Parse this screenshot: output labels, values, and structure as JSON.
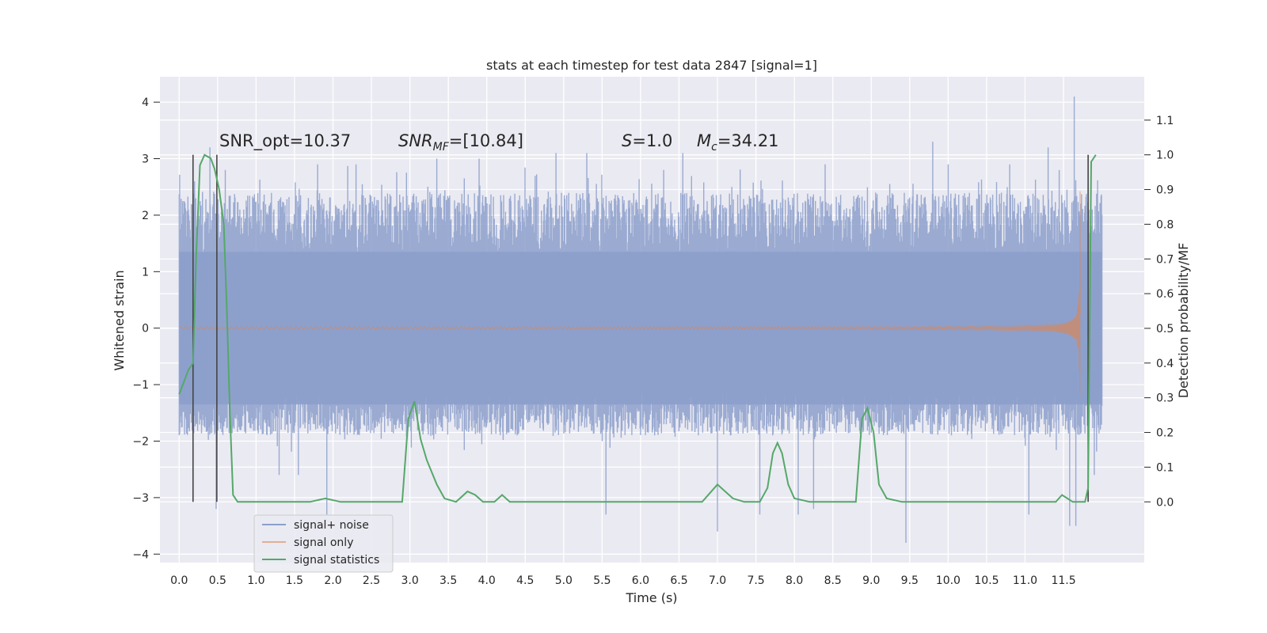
{
  "chart_data": {
    "type": "line",
    "title": "stats at each timestep for test data 2847 [signal=1]",
    "xlabel": "Time (s)",
    "ylabel": "Whitened strain",
    "ylabel_right": "Detection probability/MF",
    "xlim": [
      -0.25,
      12.55
    ],
    "ylim": [
      -4.15,
      4.45
    ],
    "ylim_right": [
      -0.175,
      1.225
    ],
    "xticks": [
      "0.0",
      "0.5",
      "1.0",
      "1.5",
      "2.0",
      "2.5",
      "3.0",
      "3.5",
      "4.0",
      "4.5",
      "5.0",
      "5.5",
      "6.0",
      "6.5",
      "7.0",
      "7.5",
      "8.0",
      "8.5",
      "9.0",
      "9.5",
      "10.0",
      "10.5",
      "11.0",
      "11.5"
    ],
    "yticks": [
      "4",
      "3",
      "2",
      "1",
      "0",
      "−1",
      "−2",
      "−3",
      "−4"
    ],
    "yticks_right": [
      "1.1",
      "1.0",
      "0.9",
      "0.8",
      "0.7",
      "0.6",
      "0.5",
      "0.4",
      "0.3",
      "0.2",
      "0.1",
      "0.0"
    ],
    "grid": true,
    "legend_position": "lower-left",
    "annotations": {
      "snr_opt": "SNR_opt=10.37",
      "snr_mf_main": "SNR",
      "snr_mf_sub": "MF",
      "snr_mf_value": "=[10.84]",
      "s_symbol": "S",
      "s_value": "=1.0",
      "mc_symbol": "M",
      "mc_sub": "c",
      "mc_value": "=34.21"
    },
    "vertical_lines": [
      0.18,
      0.49,
      11.82
    ],
    "series": [
      {
        "name": "signal+ noise",
        "color": "#8c9fcb",
        "time_range": [
          0.0,
          12.0
        ],
        "envelope_typical": [
          -1.9,
          2.4
        ],
        "spikes": [
          {
            "t": 0.2,
            "y": 2.6
          },
          {
            "t": 0.4,
            "y": 3.2
          },
          {
            "t": 0.48,
            "y": -3.2
          },
          {
            "t": 0.6,
            "y": 2.8
          },
          {
            "t": 1.3,
            "y": -2.6
          },
          {
            "t": 1.55,
            "y": -2.6
          },
          {
            "t": 1.8,
            "y": 2.9
          },
          {
            "t": 1.92,
            "y": -3.3
          },
          {
            "t": 2.3,
            "y": 2.9
          },
          {
            "t": 3.35,
            "y": 3.0
          },
          {
            "t": 3.9,
            "y": 3.0
          },
          {
            "t": 4.9,
            "y": 3.1
          },
          {
            "t": 5.3,
            "y": 3.1
          },
          {
            "t": 5.55,
            "y": -3.3
          },
          {
            "t": 6.3,
            "y": 2.8
          },
          {
            "t": 6.55,
            "y": 3.1
          },
          {
            "t": 7.0,
            "y": -3.6
          },
          {
            "t": 7.55,
            "y": -3.3
          },
          {
            "t": 8.05,
            "y": -3.3
          },
          {
            "t": 8.25,
            "y": -3.2
          },
          {
            "t": 8.4,
            "y": 2.9
          },
          {
            "t": 9.45,
            "y": -3.8
          },
          {
            "t": 9.8,
            "y": 3.3
          },
          {
            "t": 10.0,
            "y": 2.9
          },
          {
            "t": 10.8,
            "y": 2.9
          },
          {
            "t": 11.05,
            "y": -3.3
          },
          {
            "t": 11.3,
            "y": 3.2
          },
          {
            "t": 11.58,
            "y": -3.5
          },
          {
            "t": 11.64,
            "y": 4.1
          },
          {
            "t": 11.66,
            "y": -3.5
          },
          {
            "t": 11.9,
            "y": -2.6
          }
        ]
      },
      {
        "name": "signal only",
        "color": "#dd8452",
        "time_range": [
          0.0,
          11.72
        ],
        "chirp_end_amplitude": 2.5,
        "merger_time": 11.72
      },
      {
        "name": "signal statistics",
        "color": "#55a868",
        "axis": "right",
        "points": [
          [
            0.0,
            0.31
          ],
          [
            0.12,
            0.38
          ],
          [
            0.18,
            0.4
          ],
          [
            0.22,
            0.7
          ],
          [
            0.27,
            0.97
          ],
          [
            0.33,
            1.0
          ],
          [
            0.41,
            0.99
          ],
          [
            0.46,
            0.96
          ],
          [
            0.52,
            0.9
          ],
          [
            0.58,
            0.8
          ],
          [
            0.62,
            0.55
          ],
          [
            0.66,
            0.25
          ],
          [
            0.7,
            0.02
          ],
          [
            0.76,
            0.0
          ],
          [
            1.0,
            0.0
          ],
          [
            1.4,
            0.0
          ],
          [
            1.7,
            0.0
          ],
          [
            1.9,
            0.01
          ],
          [
            2.1,
            0.0
          ],
          [
            2.9,
            0.0
          ],
          [
            2.98,
            0.24
          ],
          [
            3.06,
            0.29
          ],
          [
            3.14,
            0.18
          ],
          [
            3.22,
            0.12
          ],
          [
            3.35,
            0.05
          ],
          [
            3.45,
            0.01
          ],
          [
            3.6,
            0.0
          ],
          [
            3.75,
            0.03
          ],
          [
            3.85,
            0.02
          ],
          [
            3.95,
            0.0
          ],
          [
            4.1,
            0.0
          ],
          [
            4.2,
            0.02
          ],
          [
            4.3,
            0.0
          ],
          [
            5.0,
            0.0
          ],
          [
            5.3,
            0.0
          ],
          [
            6.0,
            0.0
          ],
          [
            6.8,
            0.0
          ],
          [
            6.92,
            0.03
          ],
          [
            7.0,
            0.05
          ],
          [
            7.1,
            0.03
          ],
          [
            7.2,
            0.01
          ],
          [
            7.35,
            0.0
          ],
          [
            7.55,
            0.0
          ],
          [
            7.65,
            0.04
          ],
          [
            7.72,
            0.14
          ],
          [
            7.78,
            0.17
          ],
          [
            7.84,
            0.14
          ],
          [
            7.92,
            0.05
          ],
          [
            8.0,
            0.01
          ],
          [
            8.2,
            0.0
          ],
          [
            8.8,
            0.0
          ],
          [
            8.88,
            0.24
          ],
          [
            8.95,
            0.27
          ],
          [
            9.03,
            0.2
          ],
          [
            9.1,
            0.05
          ],
          [
            9.2,
            0.01
          ],
          [
            9.4,
            0.0
          ],
          [
            11.4,
            0.0
          ],
          [
            11.48,
            0.02
          ],
          [
            11.55,
            0.01
          ],
          [
            11.62,
            0.0
          ],
          [
            11.78,
            0.0
          ],
          [
            11.82,
            0.04
          ],
          [
            11.86,
            0.98
          ],
          [
            11.92,
            1.0
          ]
        ]
      }
    ]
  }
}
